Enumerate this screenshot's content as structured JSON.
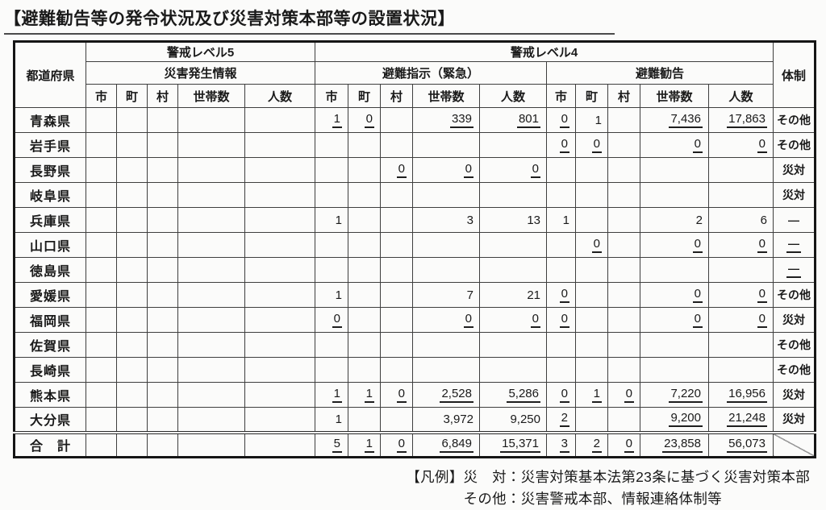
{
  "page": {
    "title": "【避難勧告等の発令状況及び災害対策本部等の設置状況】"
  },
  "colors": {
    "ink": "#1a1a1a",
    "paper": "#fbfbfa",
    "grid_line": "#3e3e3e",
    "frame": "#151515"
  },
  "table": {
    "header": {
      "prefecture": "都道府県",
      "taisei": "体制",
      "level5": {
        "label": "警戒レベル5",
        "sub": "災害発生情報"
      },
      "level4": {
        "label": "警戒レベル4",
        "sub_shiji": "避難指示（緊急）",
        "sub_kankoku": "避難勧告"
      },
      "unit_cols": [
        "市",
        "町",
        "村",
        "世帯数",
        "人数"
      ]
    },
    "rows": [
      {
        "pref": "青森県",
        "lv5": [
          "",
          "",
          "",
          "",
          ""
        ],
        "shiji": [
          {
            "v": "1",
            "u": true
          },
          {
            "v": "0",
            "u": true
          },
          "",
          {
            "v": "339",
            "u": true
          },
          {
            "v": "801",
            "u": true
          }
        ],
        "kankoku": [
          {
            "v": "0",
            "u": true
          },
          "1",
          "",
          {
            "v": "7,436",
            "u": true
          },
          {
            "v": "17,863",
            "u": true
          }
        ],
        "taisei": "その他"
      },
      {
        "pref": "岩手県",
        "lv5": [
          "",
          "",
          "",
          "",
          ""
        ],
        "shiji": [
          "",
          "",
          "",
          "",
          ""
        ],
        "kankoku": [
          {
            "v": "0",
            "u": true
          },
          {
            "v": "0",
            "u": true
          },
          "",
          {
            "v": "0",
            "u": true
          },
          {
            "v": "0",
            "u": true
          }
        ],
        "taisei": "その他"
      },
      {
        "pref": "長野県",
        "lv5": [
          "",
          "",
          "",
          "",
          ""
        ],
        "shiji": [
          "",
          "",
          {
            "v": "0",
            "u": true
          },
          {
            "v": "0",
            "u": true
          },
          {
            "v": "0",
            "u": true
          }
        ],
        "kankoku": [
          "",
          "",
          "",
          "",
          ""
        ],
        "taisei": "災対"
      },
      {
        "pref": "岐阜県",
        "lv5": [
          "",
          "",
          "",
          "",
          ""
        ],
        "shiji": [
          "",
          "",
          "",
          "",
          ""
        ],
        "kankoku": [
          "",
          "",
          "",
          "",
          ""
        ],
        "taisei": "災対"
      },
      {
        "pref": "兵庫県",
        "lv5": [
          "",
          "",
          "",
          "",
          ""
        ],
        "shiji": [
          "1",
          "",
          "",
          "3",
          "13"
        ],
        "kankoku": [
          "1",
          "",
          "",
          "2",
          "6"
        ],
        "taisei": "―"
      },
      {
        "pref": "山口県",
        "lv5": [
          "",
          "",
          "",
          "",
          ""
        ],
        "shiji": [
          "",
          "",
          "",
          "",
          ""
        ],
        "kankoku": [
          "",
          {
            "v": "0",
            "u": true
          },
          "",
          {
            "v": "0",
            "u": true
          },
          {
            "v": "0",
            "u": true
          }
        ],
        "taisei": {
          "v": "―",
          "u": true
        }
      },
      {
        "pref": "徳島県",
        "lv5": [
          "",
          "",
          "",
          "",
          ""
        ],
        "shiji": [
          "",
          "",
          "",
          "",
          ""
        ],
        "kankoku": [
          "",
          "",
          "",
          "",
          ""
        ],
        "taisei": {
          "v": "―",
          "u": true
        }
      },
      {
        "pref": "愛媛県",
        "lv5": [
          "",
          "",
          "",
          "",
          ""
        ],
        "shiji": [
          "1",
          "",
          "",
          "7",
          "21"
        ],
        "kankoku": [
          {
            "v": "0",
            "u": true
          },
          "",
          "",
          {
            "v": "0",
            "u": true
          },
          {
            "v": "0",
            "u": true
          }
        ],
        "taisei": "その他"
      },
      {
        "pref": "福岡県",
        "lv5": [
          "",
          "",
          "",
          "",
          ""
        ],
        "shiji": [
          {
            "v": "0",
            "u": true
          },
          "",
          "",
          {
            "v": "0",
            "u": true
          },
          {
            "v": "0",
            "u": true
          }
        ],
        "kankoku": [
          {
            "v": "0",
            "u": true
          },
          "",
          "",
          {
            "v": "0",
            "u": true
          },
          {
            "v": "0",
            "u": true
          }
        ],
        "taisei": "災対"
      },
      {
        "pref": "佐賀県",
        "lv5": [
          "",
          "",
          "",
          "",
          ""
        ],
        "shiji": [
          "",
          "",
          "",
          "",
          ""
        ],
        "kankoku": [
          "",
          "",
          "",
          "",
          ""
        ],
        "taisei": "その他"
      },
      {
        "pref": "長崎県",
        "lv5": [
          "",
          "",
          "",
          "",
          ""
        ],
        "shiji": [
          "",
          "",
          "",
          "",
          ""
        ],
        "kankoku": [
          "",
          "",
          "",
          "",
          ""
        ],
        "taisei": "その他"
      },
      {
        "pref": "熊本県",
        "lv5": [
          "",
          "",
          "",
          "",
          ""
        ],
        "shiji": [
          {
            "v": "1",
            "u": true
          },
          {
            "v": "1",
            "u": true
          },
          {
            "v": "0",
            "u": true
          },
          {
            "v": "2,528",
            "u": true
          },
          {
            "v": "5,286",
            "u": true
          }
        ],
        "kankoku": [
          {
            "v": "0",
            "u": true
          },
          {
            "v": "1",
            "u": true
          },
          {
            "v": "0",
            "u": true
          },
          {
            "v": "7,220",
            "u": true
          },
          {
            "v": "16,956",
            "u": true
          }
        ],
        "taisei": "災対"
      },
      {
        "pref": "大分県",
        "lv5": [
          "",
          "",
          "",
          "",
          ""
        ],
        "shiji": [
          "1",
          "",
          "",
          "3,972",
          "9,250"
        ],
        "kankoku": [
          {
            "v": "2",
            "u": true
          },
          "",
          "",
          {
            "v": "9,200",
            "u": true
          },
          {
            "v": "21,248",
            "u": true
          }
        ],
        "taisei": "災対"
      },
      {
        "pref": "合　計",
        "total": true,
        "lv5": [
          "",
          "",
          "",
          "",
          ""
        ],
        "shiji": [
          {
            "v": "5",
            "u": true
          },
          {
            "v": "1",
            "u": true
          },
          {
            "v": "0",
            "u": true
          },
          {
            "v": "6,849",
            "u": true
          },
          {
            "v": "15,371",
            "u": true
          }
        ],
        "kankoku": [
          {
            "v": "3",
            "u": true
          },
          {
            "v": "2",
            "u": true
          },
          {
            "v": "0",
            "u": true
          },
          {
            "v": "23,858",
            "u": true
          },
          {
            "v": "56,073",
            "u": true
          }
        ],
        "taisei": {
          "slash": true
        }
      }
    ]
  },
  "legend": {
    "label": "【凡例】",
    "lines": [
      "災　対：災害対策基本法第23条に基づく災害対策本部",
      "その他：災害警戒本部、情報連絡体制等"
    ]
  }
}
